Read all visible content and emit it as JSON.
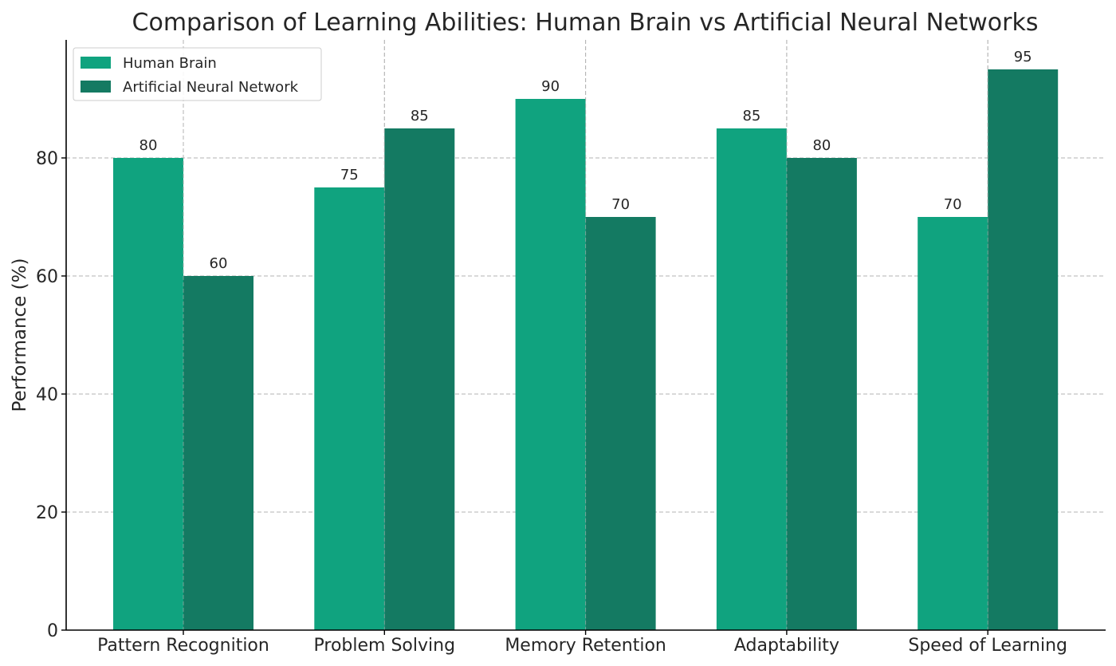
{
  "chart_data": {
    "type": "bar",
    "title": "Comparison of Learning Abilities: Human Brain vs Artificial Neural Networks",
    "xlabel": "",
    "ylabel": "Performance (%)",
    "categories": [
      "Pattern Recognition",
      "Problem Solving",
      "Memory Retention",
      "Adaptability",
      "Speed of Learning"
    ],
    "series": [
      {
        "name": "Human Brain",
        "values": [
          80,
          75,
          90,
          85,
          70
        ],
        "color": "#10a37f"
      },
      {
        "name": "Artificial Neural Network",
        "values": [
          60,
          85,
          70,
          80,
          95
        ],
        "color": "#147a62"
      }
    ],
    "ylim": [
      0,
      100
    ],
    "yticks": [
      0,
      20,
      40,
      60,
      80
    ],
    "grid": true,
    "legend_position": "top-left"
  }
}
